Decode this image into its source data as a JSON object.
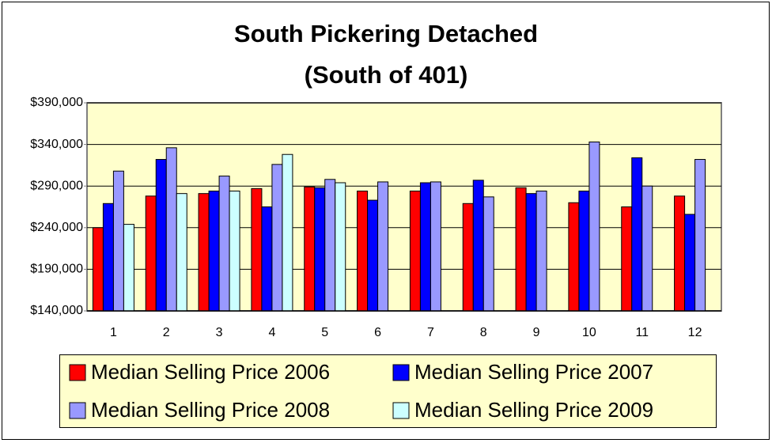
{
  "chart_data": {
    "type": "bar",
    "title": "South Pickering Detached",
    "subtitle": "(South of 401)",
    "categories": [
      1,
      2,
      3,
      4,
      5,
      6,
      7,
      8,
      9,
      10,
      11,
      12
    ],
    "series": [
      {
        "name": "Median Selling Price 2006",
        "color": "#ff0000",
        "values": [
          240000,
          278000,
          281000,
          287000,
          289000,
          284000,
          284000,
          269000,
          288000,
          270000,
          265000,
          278000
        ]
      },
      {
        "name": "Median Selling Price 2007",
        "color": "#0000ff",
        "values": [
          269000,
          322000,
          284000,
          265000,
          288000,
          273000,
          294000,
          297000,
          281000,
          284000,
          324000,
          256000
        ]
      },
      {
        "name": "Median Selling Price 2008",
        "color": "#9999ff",
        "values": [
          308000,
          336000,
          302000,
          316000,
          298000,
          295000,
          295000,
          277000,
          284000,
          343000,
          290000,
          322000
        ]
      },
      {
        "name": "Median Selling Price 2009",
        "color": "#ccffff",
        "values": [
          244000,
          281000,
          284000,
          328000,
          294000,
          null,
          null,
          null,
          null,
          null,
          null,
          null
        ]
      }
    ],
    "ylim": [
      140000,
      390000
    ],
    "yticks": [
      {
        "value": 140000,
        "label": "$140,000"
      },
      {
        "value": 190000,
        "label": "$190,000"
      },
      {
        "value": 240000,
        "label": "$240,000"
      },
      {
        "value": 290000,
        "label": "$290,000"
      },
      {
        "value": 340000,
        "label": "$340,000"
      },
      {
        "value": 390000,
        "label": "$390,000"
      }
    ],
    "grid": true,
    "legend": "bottom"
  }
}
